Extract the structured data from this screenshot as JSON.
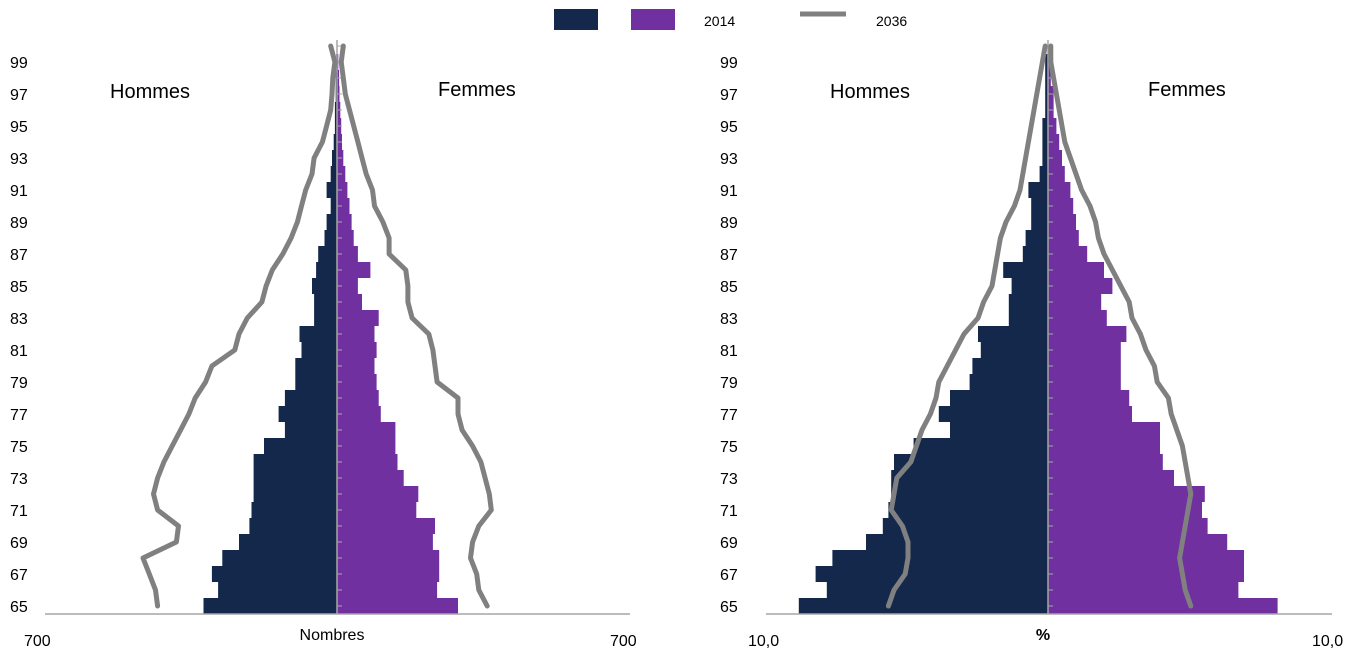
{
  "legend": {
    "items": [
      {
        "label": "",
        "color": "#14284b",
        "type": "box"
      },
      {
        "label": "2014",
        "color": "#7030a0",
        "type": "box"
      },
      {
        "label": "2036",
        "color": "#808080",
        "type": "line"
      }
    ]
  },
  "colors": {
    "men": "#14284b",
    "women": "#7030a0",
    "projection": "#808080",
    "axis": "#a6a6a6"
  },
  "chart_data": [
    {
      "type": "bar",
      "orientation": "horizontal-pyramid",
      "left_label": "Hommes",
      "right_label": "Femmes",
      "xlabel": "Nombres",
      "x_tick_left": "700",
      "x_tick_right": "700",
      "xlim": [
        -700,
        700
      ],
      "ylim": [
        65,
        100
      ],
      "age_tick_labels": [
        "99",
        "97",
        "95",
        "93",
        "91",
        "89",
        "87",
        "85",
        "83",
        "81",
        "79",
        "77",
        "75",
        "73",
        "71",
        "69",
        "67",
        "65"
      ],
      "ages": [
        65,
        66,
        67,
        68,
        69,
        70,
        71,
        72,
        73,
        74,
        75,
        76,
        77,
        78,
        79,
        80,
        81,
        82,
        83,
        84,
        85,
        86,
        87,
        88,
        89,
        90,
        91,
        92,
        93,
        94,
        95,
        96,
        97,
        98,
        99,
        100
      ],
      "series": [
        {
          "name": "Hommes 2014",
          "values": [
            320,
            285,
            300,
            275,
            235,
            210,
            205,
            200,
            200,
            200,
            175,
            125,
            140,
            125,
            100,
            100,
            85,
            90,
            55,
            55,
            60,
            50,
            45,
            30,
            25,
            15,
            25,
            15,
            12,
            8,
            5,
            5,
            3,
            3,
            2,
            1
          ]
        },
        {
          "name": "Femmes 2014",
          "values": [
            290,
            240,
            245,
            245,
            230,
            235,
            190,
            195,
            160,
            145,
            140,
            140,
            105,
            100,
            95,
            90,
            95,
            90,
            100,
            60,
            50,
            80,
            50,
            40,
            35,
            30,
            25,
            20,
            15,
            12,
            10,
            8,
            6,
            5,
            3,
            2
          ]
        },
        {
          "name": "Hommes 2036",
          "values": [
            430,
            435,
            450,
            465,
            385,
            380,
            430,
            440,
            430,
            415,
            395,
            375,
            355,
            340,
            315,
            300,
            245,
            235,
            215,
            180,
            170,
            155,
            130,
            110,
            95,
            85,
            75,
            60,
            55,
            35,
            25,
            15,
            12,
            10,
            5,
            15
          ]
        },
        {
          "name": "Femmes 2036",
          "values": [
            360,
            340,
            335,
            320,
            325,
            340,
            370,
            365,
            355,
            345,
            325,
            300,
            290,
            290,
            240,
            235,
            230,
            220,
            180,
            170,
            170,
            165,
            125,
            125,
            110,
            90,
            85,
            70,
            60,
            50,
            40,
            30,
            20,
            15,
            10,
            15
          ]
        }
      ]
    },
    {
      "type": "bar",
      "orientation": "horizontal-pyramid",
      "left_label": "Hommes",
      "right_label": "Femmes",
      "xlabel": "%",
      "x_tick_left": "10,0",
      "x_tick_right": "10,0",
      "xlim": [
        -10,
        10
      ],
      "ylim": [
        65,
        100
      ],
      "age_tick_labels": [
        "99",
        "97",
        "95",
        "93",
        "91",
        "89",
        "87",
        "85",
        "83",
        "81",
        "79",
        "77",
        "75",
        "73",
        "71",
        "69",
        "67",
        "65"
      ],
      "ages": [
        65,
        66,
        67,
        68,
        69,
        70,
        71,
        72,
        73,
        74,
        75,
        76,
        77,
        78,
        79,
        80,
        81,
        82,
        83,
        84,
        85,
        86,
        87,
        88,
        89,
        90,
        91,
        92,
        93,
        94,
        95,
        96,
        97,
        98,
        99,
        100
      ],
      "series": [
        {
          "name": "Hommes 2014",
          "values": [
            8.9,
            7.9,
            8.3,
            7.7,
            6.5,
            5.9,
            5.7,
            5.6,
            5.6,
            5.5,
            4.8,
            3.5,
            3.9,
            3.5,
            2.8,
            2.7,
            2.4,
            2.5,
            1.4,
            1.4,
            1.3,
            1.6,
            0.9,
            0.8,
            0.6,
            0.6,
            0.7,
            0.3,
            0.2,
            0.2,
            0.2,
            0.1,
            0.1,
            0.1,
            0.1,
            0.0
          ]
        },
        {
          "name": "Femmes 2014",
          "values": [
            8.2,
            6.8,
            7.0,
            7.0,
            6.4,
            5.7,
            5.5,
            5.6,
            4.5,
            4.1,
            4.0,
            4.0,
            3.0,
            2.9,
            2.6,
            2.6,
            2.6,
            2.8,
            2.1,
            1.9,
            2.3,
            2.0,
            1.4,
            1.1,
            1.0,
            0.9,
            0.8,
            0.6,
            0.5,
            0.4,
            0.3,
            0.2,
            0.2,
            0.1,
            0.1,
            0.0
          ]
        },
        {
          "name": "Hommes 2036",
          "values": [
            5.7,
            5.5,
            5.1,
            5.0,
            5.0,
            5.2,
            5.6,
            5.5,
            5.4,
            4.9,
            4.7,
            4.5,
            4.2,
            4.0,
            3.9,
            3.6,
            3.3,
            3.0,
            2.5,
            2.3,
            2.0,
            1.9,
            1.8,
            1.7,
            1.5,
            1.2,
            1.0,
            0.9,
            0.8,
            0.7,
            0.6,
            0.5,
            0.4,
            0.3,
            0.2,
            0.1
          ]
        },
        {
          "name": "Femmes 2036",
          "values": [
            5.1,
            4.9,
            4.8,
            4.7,
            4.8,
            4.9,
            5.0,
            5.1,
            5.0,
            4.9,
            4.8,
            4.6,
            4.4,
            4.3,
            3.9,
            3.8,
            3.5,
            3.3,
            3.0,
            2.9,
            2.6,
            2.3,
            2.0,
            1.8,
            1.7,
            1.5,
            1.2,
            1.0,
            0.8,
            0.6,
            0.5,
            0.4,
            0.3,
            0.2,
            0.1,
            0.1
          ]
        }
      ]
    }
  ]
}
